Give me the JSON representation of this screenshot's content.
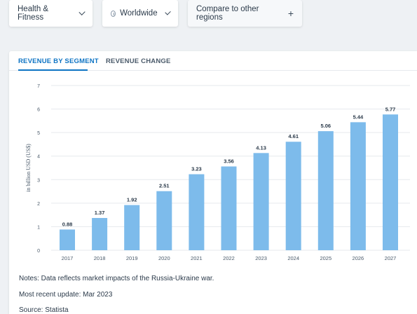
{
  "filters": {
    "segment": "Health & Fitness",
    "region": "Worldwide",
    "compare_label": "Compare to other regions"
  },
  "tabs": [
    {
      "label": "REVENUE BY SEGMENT",
      "active": true
    },
    {
      "label": "REVENUE CHANGE",
      "active": false
    }
  ],
  "colors": {
    "bar": "#7dbbeb",
    "accent": "#0e74c4",
    "grid": "#e6e9ed"
  },
  "chart_data": {
    "type": "bar",
    "categories": [
      "2017",
      "2018",
      "2019",
      "2020",
      "2021",
      "2022",
      "2023",
      "2024",
      "2025",
      "2026",
      "2027"
    ],
    "values": [
      0.88,
      1.37,
      1.92,
      2.51,
      3.23,
      3.56,
      4.13,
      4.61,
      5.06,
      5.44,
      5.77
    ],
    "value_labels": [
      "0.88",
      "1.37",
      "1.92",
      "2.51",
      "3.23",
      "3.56",
      "4.13",
      "4.61",
      "5.06",
      "5.44",
      "5.77"
    ],
    "ylabel": "in billion USD (US$)",
    "ylim": [
      0,
      7
    ],
    "yticks": [
      0,
      1,
      2,
      3,
      4,
      5,
      6,
      7
    ],
    "grid": true,
    "data_labels": true
  },
  "notes": {
    "line1": "Notes: Data reflects market impacts of the Russia-Ukraine war.",
    "line2": "Most recent update: Mar 2023",
    "line3": "Source: Statista"
  }
}
